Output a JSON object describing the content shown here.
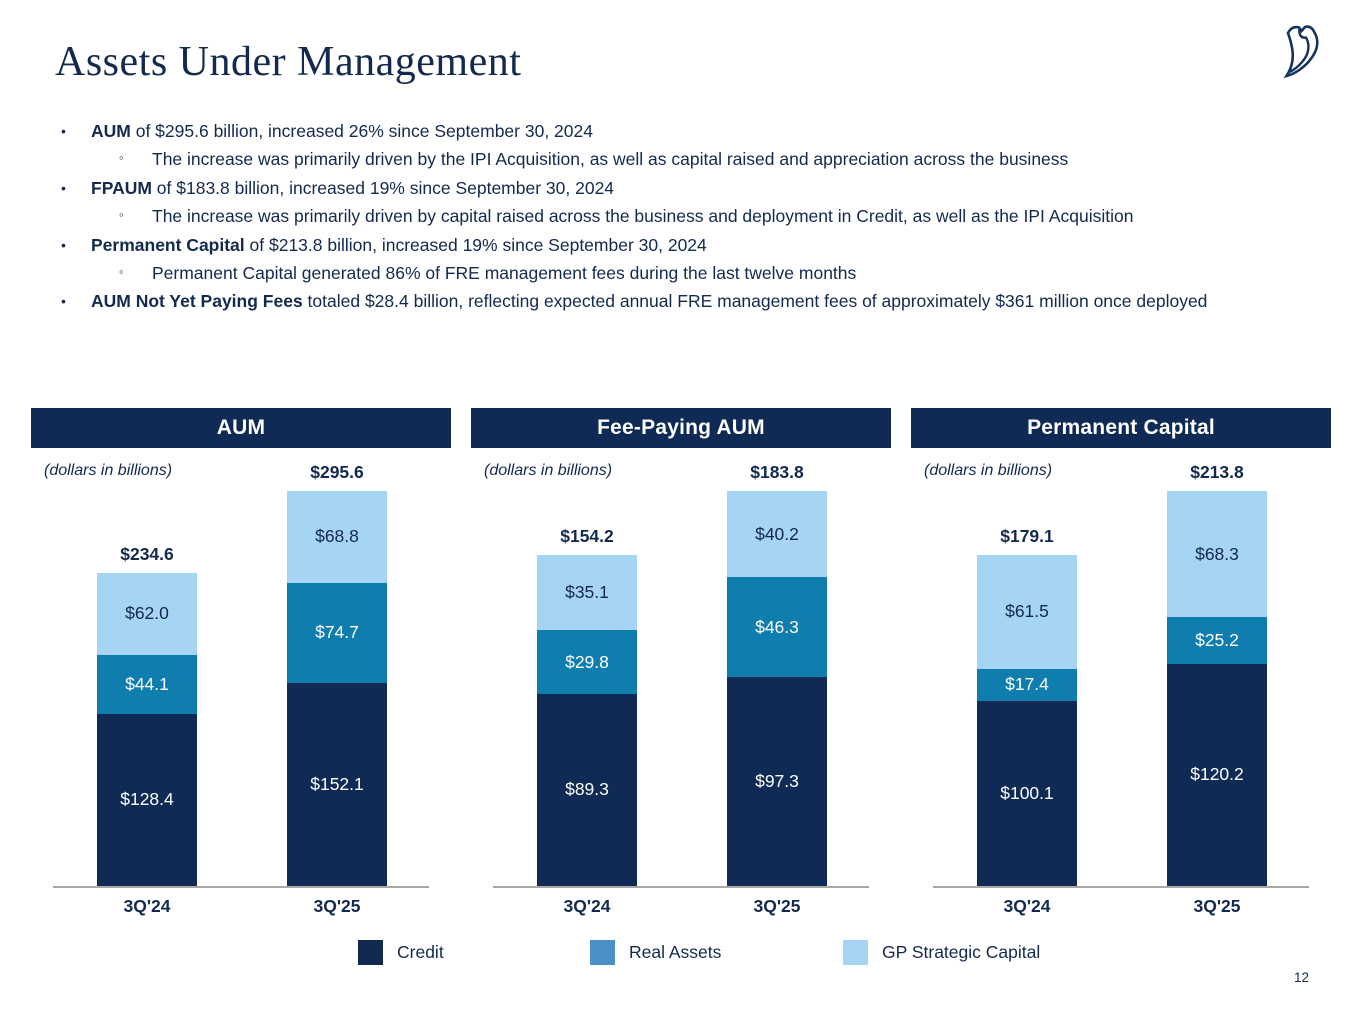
{
  "header": {
    "title": "Assets Under Management",
    "logo": "blue-owl-logo"
  },
  "bullets": [
    {
      "level": 1,
      "lead": "AUM",
      "text": " of $295.6 billion, increased 26% since September 30, 2024"
    },
    {
      "level": 2,
      "lead": "",
      "text": "The increase was primarily driven by the IPI Acquisition, as well as capital raised and appreciation across the business"
    },
    {
      "level": 1,
      "lead": "FPAUM",
      "text": " of $183.8 billion, increased 19% since September 30, 2024"
    },
    {
      "level": 2,
      "lead": "",
      "text": "The increase was primarily driven by capital raised across the business and deployment in Credit, as well as the IPI Acquisition"
    },
    {
      "level": 1,
      "lead": "Permanent Capital",
      "text": " of $213.8 billion, increased 19% since September 30, 2024"
    },
    {
      "level": 2,
      "lead": "",
      "text": "Permanent Capital generated 86% of FRE management fees during the last twelve months"
    },
    {
      "level": 1,
      "lead": "AUM Not Yet Paying Fees",
      "text": " totaled $28.4 billion, reflecting expected annual FRE management fees of approximately $361 million once deployed"
    }
  ],
  "chart_data": [
    {
      "type": "bar",
      "stacked": true,
      "title": "AUM",
      "units_label": "(dollars in billions)",
      "categories": [
        "3Q'24",
        "3Q'25"
      ],
      "series": [
        {
          "name": "Credit",
          "values": [
            128.4,
            152.1
          ],
          "color": "#0f2b55",
          "label_color": "#ffffff"
        },
        {
          "name": "Real Assets",
          "values": [
            44.1,
            74.7
          ],
          "color": "#0f7dae",
          "label_color": "#ffffff"
        },
        {
          "name": "GP Strategic Capital",
          "values": [
            62.0,
            68.8
          ],
          "color": "#a6d4f4",
          "label_color": "#13294e"
        }
      ],
      "totals": [
        234.6,
        295.6
      ],
      "value_prefix": "$",
      "legend_position": "bottom",
      "grid": false
    },
    {
      "type": "bar",
      "stacked": true,
      "title": "Fee-Paying AUM",
      "units_label": "(dollars in billions)",
      "categories": [
        "3Q'24",
        "3Q'25"
      ],
      "series": [
        {
          "name": "Credit",
          "values": [
            89.3,
            97.3
          ],
          "color": "#0f2b55",
          "label_color": "#ffffff"
        },
        {
          "name": "Real Assets",
          "values": [
            29.8,
            46.3
          ],
          "color": "#0f7dae",
          "label_color": "#ffffff"
        },
        {
          "name": "GP Strategic Capital",
          "values": [
            35.1,
            40.2
          ],
          "color": "#a6d4f4",
          "label_color": "#13294e"
        }
      ],
      "totals": [
        154.2,
        183.8
      ],
      "value_prefix": "$",
      "legend_position": "bottom",
      "grid": false
    },
    {
      "type": "bar",
      "stacked": true,
      "title": "Permanent Capital",
      "units_label": "(dollars in billions)",
      "categories": [
        "3Q'24",
        "3Q'25"
      ],
      "series": [
        {
          "name": "Credit",
          "values": [
            100.1,
            120.2
          ],
          "color": "#0f2b55",
          "label_color": "#ffffff"
        },
        {
          "name": "Real Assets",
          "values": [
            17.4,
            25.2
          ],
          "color": "#0f7dae",
          "label_color": "#ffffff"
        },
        {
          "name": "GP Strategic Capital",
          "values": [
            61.5,
            68.3
          ],
          "color": "#a6d4f4",
          "label_color": "#13294e"
        }
      ],
      "totals": [
        179.1,
        213.8
      ],
      "value_prefix": "$",
      "legend_position": "bottom",
      "grid": false
    }
  ],
  "legend": [
    {
      "label": "Credit",
      "color": "#12294f"
    },
    {
      "label": "Real Assets",
      "color": "#4a90c9"
    },
    {
      "label": "GP Strategic Capital",
      "color": "#a6d4f4"
    }
  ],
  "footer": {
    "page_number": "12"
  }
}
